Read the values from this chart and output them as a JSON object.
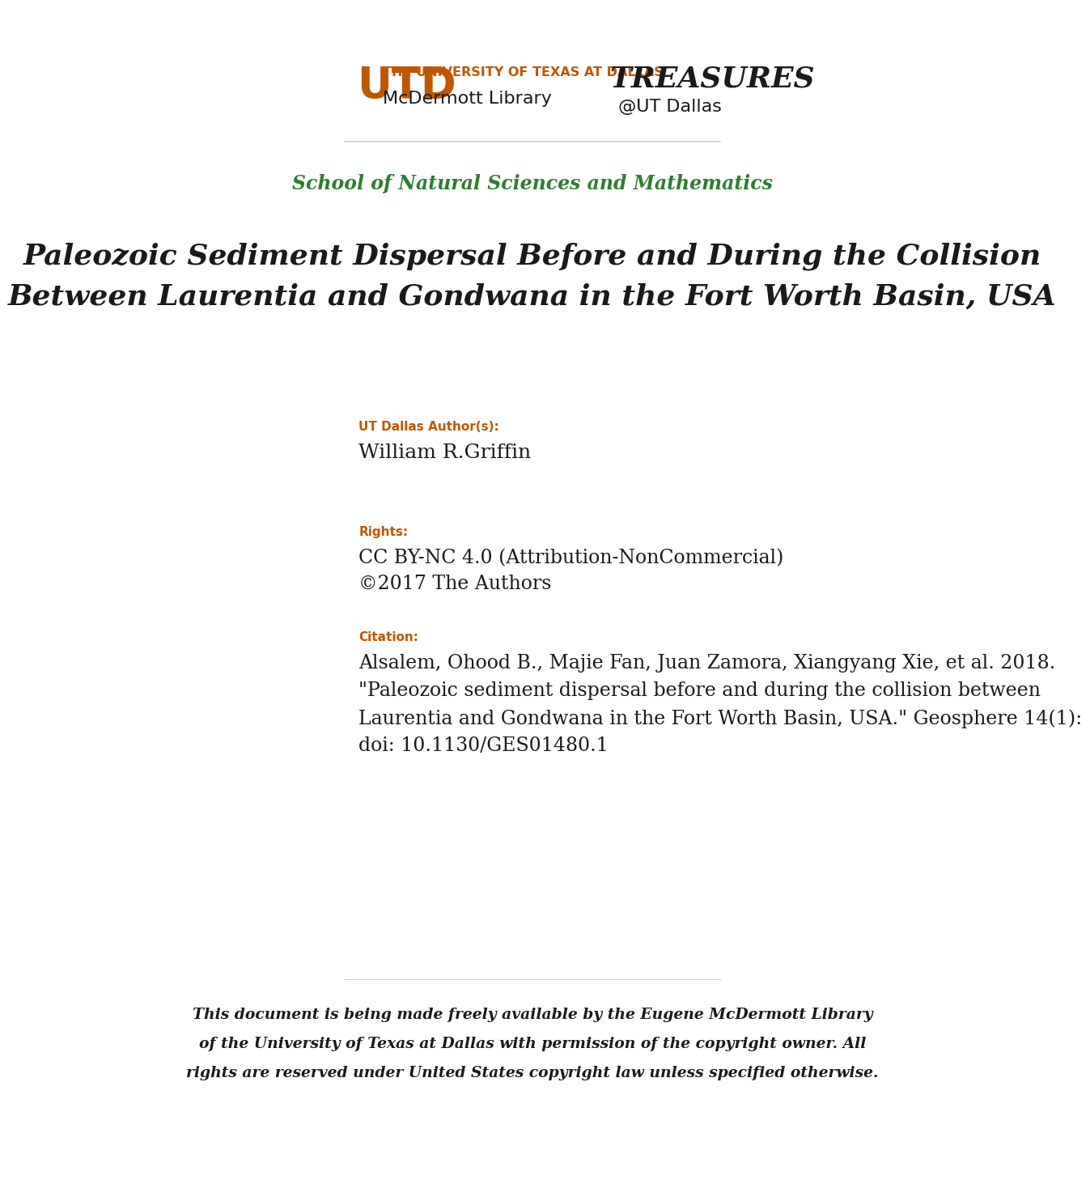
{
  "bg_color": "#ffffff",
  "utd_orange": "#BF5700",
  "green_color": "#2E7D32",
  "black_color": "#1a1a1a",
  "school_line": "School of Natural Sciences and Mathematics",
  "main_title_line1": "Paleozoic Sediment Dispersal Before and During the Collision",
  "main_title_line2": "Between Laurentia and Gondwana in the Fort Worth Basin, USA",
  "author_label": "UT Dallas Author(s):",
  "author_name": "William R.Griffin",
  "rights_label": "Rights:",
  "rights_line1": "CC BY-NC 4.0 (Attribution-NonCommercial)",
  "rights_line2": "©2017 The Authors",
  "citation_label": "Citation:",
  "citation_text": "Alsalem, Ohood B., Majie Fan, Juan Zamora, Xiangyang Xie, et al. 2018.\n\"Paleozoic sediment dispersal before and during the collision between\nLaurentia and Gondwana in the Fort Worth Basin, USA.\" Geosphere 14(1):\ndoi: 10.1130/GES01480.1",
  "footer_text": "This document is being made freely available by the Eugene McDermott Library\nof the University of Texas at Dallas with permission of the copyright owner. All\nrights are reserved under United States copyright law unless specified otherwise.",
  "utd_logo_text_line1": "THE UNIVERSITY OF TEXAS AT DALLAS",
  "utd_logo_text_line2": "McDermott Library",
  "treasures_text": "TREASURES",
  "at_ut_dallas_text": "@UT Dallas",
  "separator_color": "#cccccc"
}
